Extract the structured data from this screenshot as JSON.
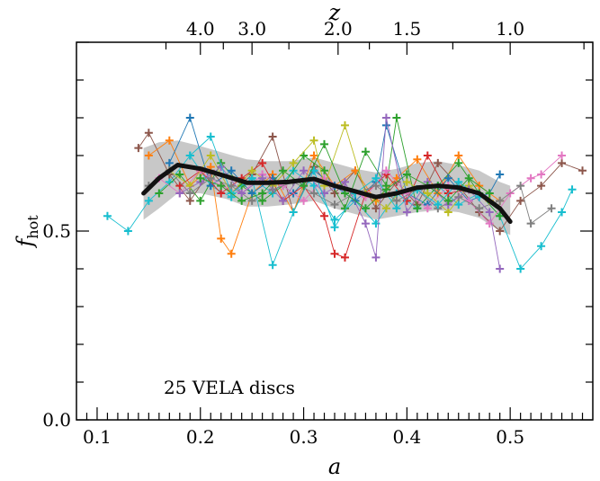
{
  "chart_data": {
    "type": "line",
    "title": "",
    "xlabel": "a",
    "ylabel": "f_hot",
    "ylabel_parts": {
      "base": "f",
      "sub": "hot"
    },
    "top_xlabel": "z",
    "xlim": [
      0.08,
      0.58
    ],
    "ylim": [
      0.0,
      1.0
    ],
    "x_ticks": [
      0.1,
      0.2,
      0.3,
      0.4,
      0.5
    ],
    "x_tick_labels": [
      "0.1",
      "0.2",
      "0.3",
      "0.4",
      "0.5"
    ],
    "y_ticks": [
      0.0,
      0.5
    ],
    "y_tick_labels": [
      "0.0",
      "0.5"
    ],
    "top_ticks_z": [
      4.0,
      3.0,
      2.0,
      1.5,
      1.0
    ],
    "top_tick_labels": [
      "4.0",
      "3.0",
      "2.0",
      "1.5",
      "1.0"
    ],
    "annotation": "25 VELA discs",
    "grid": false,
    "legend": "none",
    "mean_curve": {
      "color": "#111111",
      "x": [
        0.145,
        0.16,
        0.178,
        0.2,
        0.225,
        0.245,
        0.265,
        0.285,
        0.31,
        0.33,
        0.35,
        0.37,
        0.39,
        0.41,
        0.43,
        0.45,
        0.47,
        0.49,
        0.5
      ],
      "y": [
        0.6,
        0.64,
        0.675,
        0.665,
        0.645,
        0.628,
        0.628,
        0.63,
        0.638,
        0.62,
        0.605,
        0.59,
        0.6,
        0.615,
        0.62,
        0.615,
        0.6,
        0.56,
        0.525
      ]
    },
    "band": {
      "color": "#aaaaaa",
      "x": [
        0.145,
        0.16,
        0.178,
        0.2,
        0.225,
        0.245,
        0.265,
        0.285,
        0.31,
        0.33,
        0.35,
        0.37,
        0.39,
        0.41,
        0.43,
        0.45,
        0.47,
        0.49,
        0.5
      ],
      "upper": [
        0.72,
        0.735,
        0.74,
        0.725,
        0.705,
        0.69,
        0.685,
        0.685,
        0.695,
        0.68,
        0.665,
        0.655,
        0.665,
        0.68,
        0.685,
        0.675,
        0.66,
        0.63,
        0.62
      ],
      "lower": [
        0.53,
        0.56,
        0.6,
        0.6,
        0.585,
        0.565,
        0.565,
        0.57,
        0.58,
        0.56,
        0.545,
        0.53,
        0.54,
        0.55,
        0.555,
        0.55,
        0.535,
        0.5,
        0.49
      ]
    },
    "series": [
      {
        "color": "#17becf",
        "x": [
          0.11,
          0.13,
          0.15,
          0.17,
          0.19,
          0.21,
          0.23,
          0.25,
          0.27,
          0.29,
          0.31,
          0.33,
          0.35,
          0.37,
          0.39,
          0.41,
          0.43,
          0.45,
          0.47,
          0.49,
          0.51,
          0.53,
          0.55,
          0.56
        ],
        "y": [
          0.54,
          0.5,
          0.58,
          0.63,
          0.7,
          0.62,
          0.59,
          0.64,
          0.6,
          0.66,
          0.62,
          0.53,
          0.58,
          0.52,
          0.6,
          0.56,
          0.62,
          0.57,
          0.6,
          0.54,
          0.4,
          0.46,
          0.55,
          0.61
        ]
      },
      {
        "color": "#8c564b",
        "x": [
          0.14,
          0.15,
          0.17,
          0.19,
          0.21,
          0.23,
          0.25,
          0.27,
          0.29,
          0.31,
          0.33,
          0.35,
          0.37,
          0.39,
          0.41,
          0.43,
          0.45,
          0.47,
          0.49,
          0.51,
          0.53,
          0.55,
          0.57
        ],
        "y": [
          0.72,
          0.76,
          0.65,
          0.58,
          0.66,
          0.6,
          0.65,
          0.75,
          0.55,
          0.67,
          0.6,
          0.66,
          0.56,
          0.63,
          0.57,
          0.68,
          0.62,
          0.55,
          0.5,
          0.58,
          0.62,
          0.68,
          0.66
        ]
      },
      {
        "color": "#ff7f0e",
        "x": [
          0.15,
          0.17,
          0.19,
          0.21,
          0.22,
          0.23,
          0.25,
          0.27,
          0.29,
          0.31,
          0.33,
          0.35,
          0.37,
          0.39,
          0.41,
          0.43,
          0.45,
          0.47,
          0.49
        ],
        "y": [
          0.7,
          0.74,
          0.62,
          0.67,
          0.48,
          0.44,
          0.6,
          0.65,
          0.55,
          0.7,
          0.62,
          0.66,
          0.58,
          0.64,
          0.69,
          0.6,
          0.7,
          0.62,
          0.58
        ]
      },
      {
        "color": "#2ca02c",
        "x": [
          0.16,
          0.18,
          0.2,
          0.22,
          0.24,
          0.26,
          0.28,
          0.3,
          0.32,
          0.34,
          0.36,
          0.38,
          0.39,
          0.41,
          0.43,
          0.45,
          0.47,
          0.49
        ],
        "y": [
          0.6,
          0.65,
          0.58,
          0.68,
          0.62,
          0.58,
          0.62,
          0.7,
          0.66,
          0.56,
          0.71,
          0.62,
          0.8,
          0.56,
          0.62,
          0.68,
          0.6,
          0.54
        ]
      },
      {
        "color": "#1f77b4",
        "x": [
          0.17,
          0.19,
          0.21,
          0.23,
          0.25,
          0.27,
          0.29,
          0.31,
          0.33,
          0.35,
          0.37,
          0.38,
          0.4,
          0.42,
          0.44,
          0.46,
          0.48,
          0.49
        ],
        "y": [
          0.68,
          0.8,
          0.62,
          0.66,
          0.6,
          0.64,
          0.6,
          0.66,
          0.62,
          0.58,
          0.63,
          0.78,
          0.6,
          0.57,
          0.64,
          0.58,
          0.6,
          0.65
        ]
      },
      {
        "color": "#d62728",
        "x": [
          0.18,
          0.2,
          0.22,
          0.24,
          0.26,
          0.28,
          0.3,
          0.32,
          0.33,
          0.34,
          0.36,
          0.38,
          0.4,
          0.42,
          0.44,
          0.46,
          0.48
        ],
        "y": [
          0.62,
          0.66,
          0.6,
          0.64,
          0.68,
          0.58,
          0.62,
          0.54,
          0.44,
          0.43,
          0.6,
          0.65,
          0.58,
          0.7,
          0.6,
          0.61,
          0.58
        ]
      },
      {
        "color": "#e377c2",
        "x": [
          0.16,
          0.18,
          0.2,
          0.22,
          0.24,
          0.26,
          0.28,
          0.3,
          0.32,
          0.34,
          0.36,
          0.38,
          0.4,
          0.42,
          0.44,
          0.46,
          0.48,
          0.5,
          0.52,
          0.53,
          0.55
        ],
        "y": [
          0.64,
          0.6,
          0.66,
          0.62,
          0.6,
          0.65,
          0.62,
          0.58,
          0.64,
          0.61,
          0.59,
          0.66,
          0.6,
          0.56,
          0.62,
          0.58,
          0.52,
          0.6,
          0.64,
          0.65,
          0.7
        ]
      },
      {
        "color": "#bcbd22",
        "x": [
          0.17,
          0.19,
          0.21,
          0.23,
          0.25,
          0.27,
          0.29,
          0.31,
          0.32,
          0.34,
          0.36,
          0.38,
          0.4,
          0.42,
          0.44,
          0.46,
          0.48
        ],
        "y": [
          0.66,
          0.62,
          0.7,
          0.6,
          0.66,
          0.62,
          0.68,
          0.74,
          0.62,
          0.78,
          0.6,
          0.56,
          0.63,
          0.6,
          0.55,
          0.62,
          0.58
        ]
      },
      {
        "color": "#7f7f7f",
        "x": [
          0.15,
          0.17,
          0.19,
          0.21,
          0.23,
          0.25,
          0.27,
          0.29,
          0.31,
          0.33,
          0.35,
          0.37,
          0.39,
          0.41,
          0.43,
          0.45,
          0.47,
          0.49,
          0.51,
          0.52,
          0.54
        ],
        "y": [
          0.62,
          0.66,
          0.6,
          0.64,
          0.62,
          0.58,
          0.61,
          0.63,
          0.6,
          0.57,
          0.6,
          0.62,
          0.58,
          0.61,
          0.56,
          0.59,
          0.56,
          0.58,
          0.62,
          0.52,
          0.56
        ]
      },
      {
        "color": "#9467bd",
        "x": [
          0.18,
          0.2,
          0.22,
          0.24,
          0.26,
          0.28,
          0.3,
          0.32,
          0.34,
          0.36,
          0.37,
          0.38,
          0.4,
          0.42,
          0.44,
          0.46,
          0.48,
          0.49
        ],
        "y": [
          0.6,
          0.63,
          0.67,
          0.6,
          0.64,
          0.58,
          0.66,
          0.6,
          0.63,
          0.52,
          0.43,
          0.8,
          0.55,
          0.63,
          0.57,
          0.61,
          0.55,
          0.4
        ]
      },
      {
        "color": "#17becf",
        "x": [
          0.19,
          0.21,
          0.23,
          0.25,
          0.27,
          0.29,
          0.31,
          0.33,
          0.35,
          0.37,
          0.39,
          0.41,
          0.43,
          0.45,
          0.47
        ],
        "y": [
          0.7,
          0.75,
          0.6,
          0.64,
          0.41,
          0.55,
          0.66,
          0.51,
          0.6,
          0.64,
          0.56,
          0.61,
          0.57,
          0.63,
          0.59
        ]
      },
      {
        "color": "#2ca02c",
        "x": [
          0.2,
          0.22,
          0.24,
          0.26,
          0.28,
          0.3,
          0.32,
          0.34,
          0.36,
          0.38,
          0.4,
          0.42,
          0.44,
          0.46,
          0.48
        ],
        "y": [
          0.64,
          0.62,
          0.58,
          0.6,
          0.66,
          0.62,
          0.73,
          0.6,
          0.56,
          0.61,
          0.65,
          0.62,
          0.58,
          0.64,
          0.6
        ]
      }
    ]
  }
}
